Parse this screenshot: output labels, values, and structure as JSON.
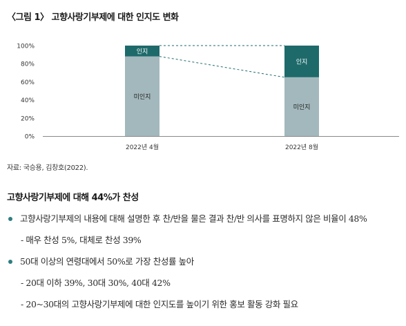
{
  "figure": {
    "title": "〈그림 1〉 고향사랑기부제에 대한 인지도 변화",
    "source": "자료: 국승용, 김창호(2022)."
  },
  "colors": {
    "aware": "#1e6a6b",
    "unaware": "#a3b8bc",
    "axis": "#888888",
    "grid": "#dddddd",
    "bullet": "#2e7d80"
  },
  "chart_data": {
    "type": "bar",
    "stacked": true,
    "categories": [
      "2022년 4월",
      "2022년 8월"
    ],
    "series": [
      {
        "name": "미인지",
        "values": [
          88,
          65
        ]
      },
      {
        "name": "인지",
        "values": [
          12,
          35
        ]
      }
    ],
    "ylim": [
      0,
      100
    ],
    "yticks": [
      "0%",
      "20%",
      "40%",
      "60%",
      "80%",
      "100%"
    ],
    "connector_lines": true,
    "grid": false
  },
  "summary": {
    "heading": "고향사랑기부제에 대해 44%가 찬성",
    "items": [
      {
        "type": "main",
        "text": "고향사랑기부제의 내용에 대해 설명한 후 찬/반을 물은 결과 찬/반 의사를 표명하지 않은 비율이 48%"
      },
      {
        "type": "sub",
        "text": "- 매우 찬성 5%, 대체로 찬성 39%"
      },
      {
        "type": "main",
        "text": "50대 이상의 연령대에서 50%로 가장 찬성률 높아"
      },
      {
        "type": "sub",
        "text": "- 20대 이하 39%, 30대 30%, 40대 42%"
      },
      {
        "type": "sub",
        "text": "- 20~30대의 고향사랑기부제에 대한 인지도를 높이기 위한 홍보 활동 강화 필요"
      }
    ]
  }
}
